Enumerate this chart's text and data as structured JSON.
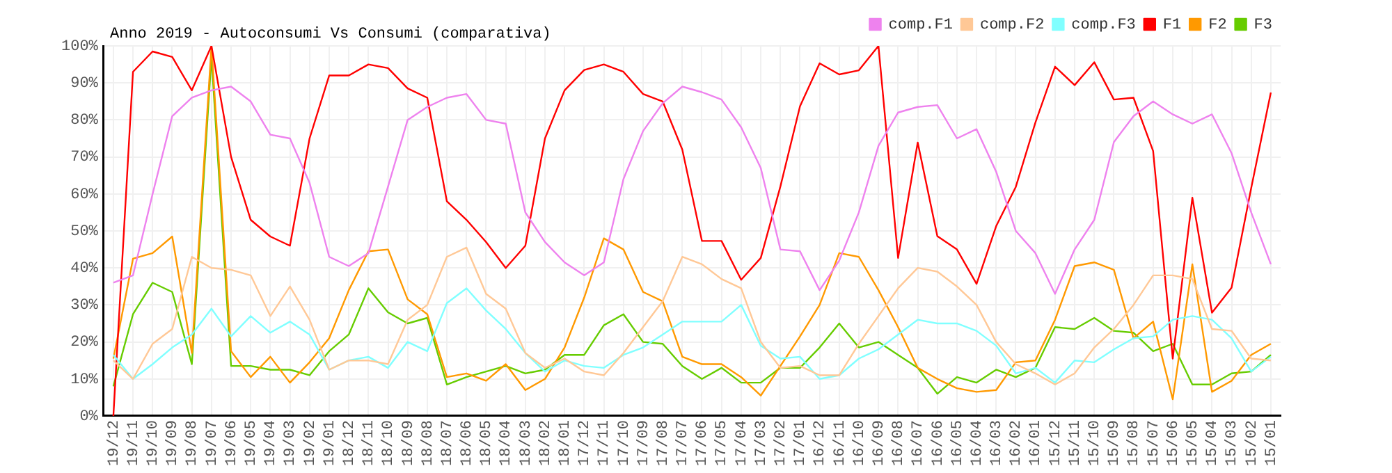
{
  "chart_data": {
    "type": "line",
    "title": "Anno 2019 - Autoconsumi Vs Consumi (comparativa)",
    "categories": [
      "19/12",
      "19/11",
      "19/10",
      "19/09",
      "19/08",
      "19/07",
      "19/06",
      "19/05",
      "19/04",
      "19/03",
      "19/02",
      "19/01",
      "18/12",
      "18/11",
      "18/10",
      "18/09",
      "18/08",
      "18/07",
      "18/06",
      "18/05",
      "18/04",
      "18/03",
      "18/02",
      "18/01",
      "17/12",
      "17/11",
      "17/10",
      "17/09",
      "17/08",
      "17/07",
      "17/06",
      "17/05",
      "17/04",
      "17/03",
      "17/02",
      "17/01",
      "16/12",
      "16/11",
      "16/10",
      "16/09",
      "16/08",
      "16/07",
      "16/06",
      "16/05",
      "16/04",
      "16/03",
      "16/02",
      "16/01",
      "15/12",
      "15/11",
      "15/10",
      "15/09",
      "15/08",
      "15/07",
      "15/06",
      "15/05",
      "15/04",
      "15/03",
      "15/02",
      "15/01"
    ],
    "series": [
      {
        "name": "comp.F1",
        "color": "#ee82ee",
        "values": [
          36,
          38,
          60,
          81,
          86,
          88,
          89,
          85,
          76,
          75,
          63,
          43,
          40.5,
          44,
          62,
          80,
          83.5,
          86,
          87,
          80,
          79,
          55,
          47,
          41.5,
          38,
          41.5,
          64,
          77,
          84.5,
          89,
          87.5,
          85.5,
          78,
          67,
          45,
          44.5,
          34,
          42,
          55,
          73,
          82,
          83.5,
          84,
          75,
          77.5,
          66,
          50,
          44,
          33,
          45,
          53,
          74,
          81,
          85,
          81.5,
          79,
          81.5,
          71,
          55,
          41
        ]
      },
      {
        "name": "comp.F2",
        "color": "#ffc896",
        "values": [
          15,
          10,
          19.5,
          23.5,
          43,
          40,
          39.5,
          38,
          27,
          35,
          26,
          12.5,
          15,
          15,
          14,
          26,
          30,
          43,
          45.5,
          33,
          29,
          17,
          13,
          15.5,
          12,
          11,
          17,
          24,
          31,
          43,
          41,
          37,
          34.5,
          20,
          13,
          13.5,
          11,
          11,
          19.5,
          27,
          34.5,
          40,
          39,
          35,
          30,
          20,
          14,
          11.5,
          8.5,
          11.5,
          18.5,
          23.5,
          30,
          38,
          38,
          37,
          23.5,
          23,
          15.5,
          15
        ]
      },
      {
        "name": "comp.F3",
        "color": "#80ffff",
        "values": [
          16.5,
          10,
          14,
          18.5,
          22,
          29,
          21.5,
          27,
          22.5,
          25.5,
          22,
          12.5,
          15,
          16,
          13,
          20,
          17.5,
          30.5,
          34.5,
          28.5,
          23.5,
          17,
          12,
          15,
          13.5,
          13,
          16.5,
          18.5,
          22,
          25.5,
          25.5,
          25.5,
          30,
          19,
          15.5,
          16,
          10,
          11,
          15.5,
          18,
          22,
          26,
          25,
          25,
          23,
          19,
          11.5,
          13,
          9,
          15,
          14.5,
          18,
          21,
          21.5,
          26,
          27,
          26,
          21,
          12,
          16
        ]
      },
      {
        "name": "F1",
        "color": "#ff0000",
        "values": [
          0,
          93,
          98.5,
          97,
          88,
          100,
          70,
          53,
          48.5,
          46,
          75,
          92,
          92,
          95,
          94,
          88.5,
          86,
          58,
          53,
          47,
          40,
          46,
          75,
          88,
          93.5,
          95,
          93,
          87,
          85,
          72,
          47.3,
          47.3,
          36.8,
          42.7,
          62,
          83.7,
          95.3,
          92.3,
          93.4,
          100,
          42.7,
          73.9,
          48.6,
          45,
          35.7,
          51.3,
          61.9,
          79.3,
          94.4,
          89.4,
          95.6,
          85.5,
          86,
          71.6,
          15.5,
          59,
          27.9,
          34.7,
          61.6,
          87.4
        ]
      },
      {
        "name": "F2",
        "color": "#ff9900",
        "values": [
          15.5,
          42.5,
          44,
          48.5,
          17,
          100,
          17.5,
          10.5,
          16,
          9,
          14.5,
          21,
          34,
          44.5,
          45,
          31.5,
          27.5,
          10.5,
          11.5,
          9.5,
          14,
          7,
          10,
          18.5,
          32,
          48,
          45,
          33.5,
          31,
          16,
          14,
          14,
          10.5,
          5.5,
          13.5,
          21.5,
          30,
          44,
          43,
          34,
          24,
          13,
          10,
          7.5,
          6.5,
          7,
          14.5,
          15,
          26,
          40.5,
          41.5,
          39.5,
          21,
          25.5,
          4.5,
          41,
          6.5,
          9.5,
          16.5,
          19.5
        ]
      },
      {
        "name": "F3",
        "color": "#66cc00",
        "values": [
          8,
          27.5,
          36,
          33.5,
          14,
          97,
          13.5,
          13.5,
          12.5,
          12.5,
          11,
          17.5,
          22,
          34.5,
          28,
          25,
          26.5,
          8.5,
          10.5,
          12,
          13.5,
          11.5,
          12.5,
          16.5,
          16.5,
          24.5,
          27.5,
          20,
          19.5,
          13.5,
          10,
          13,
          9,
          9,
          13,
          13,
          18.5,
          25,
          18.5,
          20,
          16.5,
          13,
          6,
          10.5,
          9,
          12.5,
          10.5,
          13,
          24,
          23.5,
          26.5,
          23,
          22.5,
          17.5,
          19.5,
          8.5,
          8.5,
          11.5,
          12,
          16.5
        ]
      }
    ],
    "ylim": [
      0,
      100
    ],
    "yticks": [
      {
        "value": 0,
        "label": "0%"
      },
      {
        "value": 10,
        "label": "10%"
      },
      {
        "value": 20,
        "label": "20%"
      },
      {
        "value": 30,
        "label": "30%"
      },
      {
        "value": 40,
        "label": "40%"
      },
      {
        "value": 50,
        "label": "50%"
      },
      {
        "value": 60,
        "label": "60%"
      },
      {
        "value": 70,
        "label": "70%"
      },
      {
        "value": 80,
        "label": "80%"
      },
      {
        "value": 90,
        "label": "90%"
      },
      {
        "value": 100,
        "label": "100%"
      }
    ],
    "grid": true,
    "legend": "top right",
    "marker": "none",
    "line_style": "solid"
  }
}
